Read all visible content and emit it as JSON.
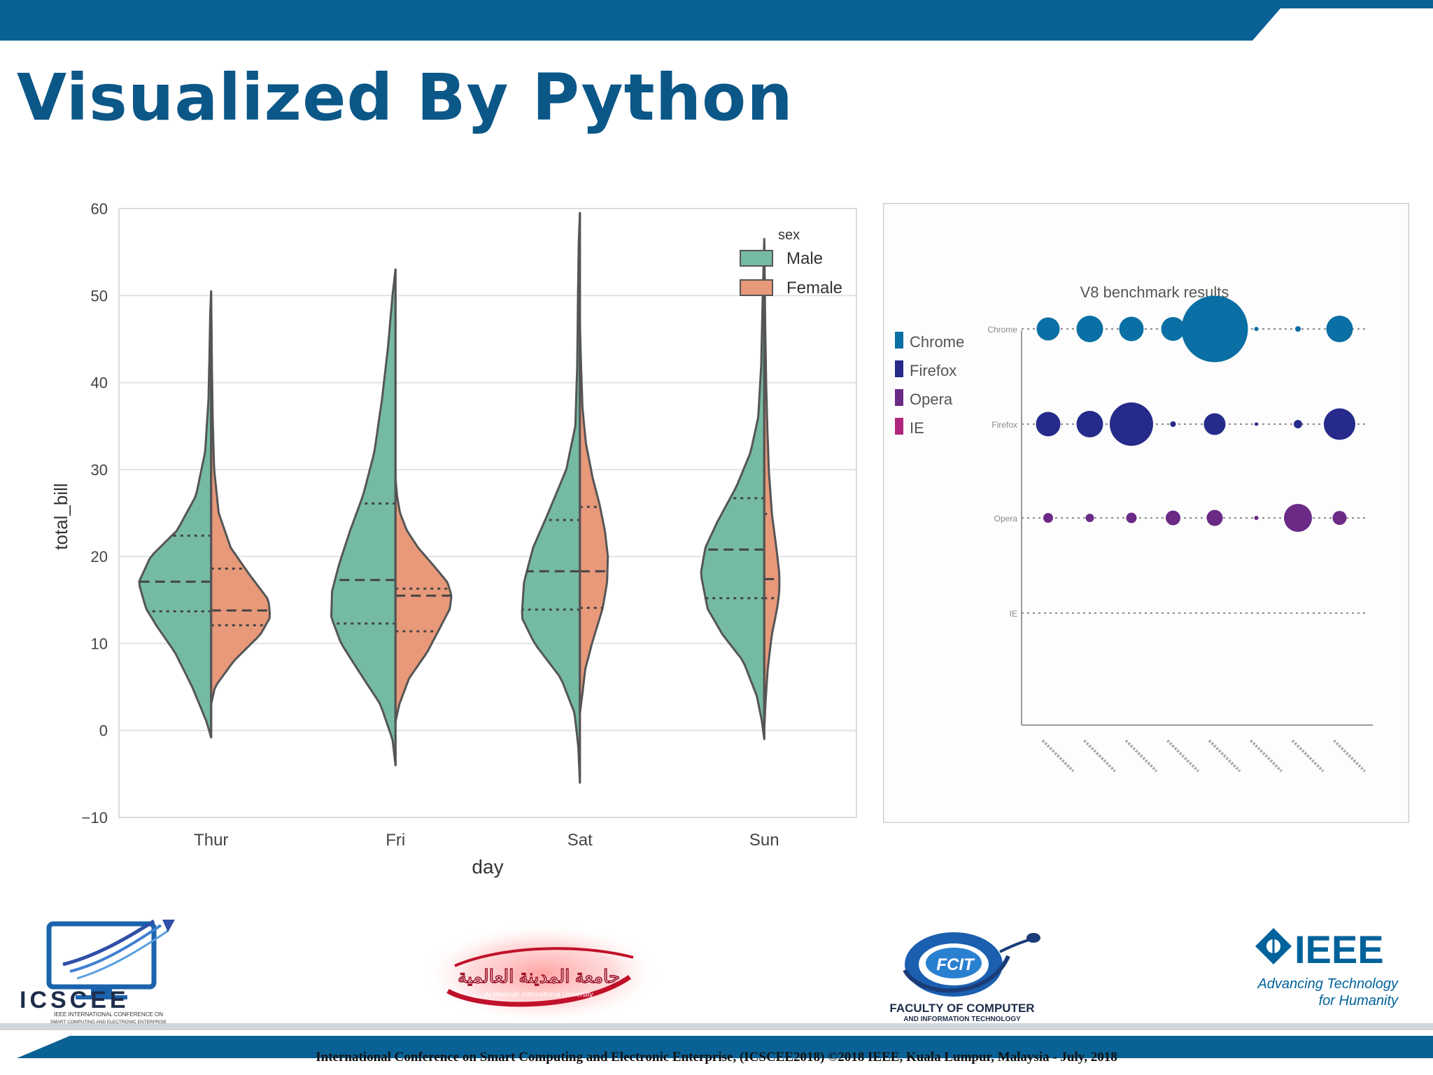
{
  "slide": {
    "title": "Visualized By Python",
    "footer": "International Conference on Smart Computing and Electronic Enterprise, (ICSCEE2018) ©2018 IEEE, Kuala Lumpur, Malaysia - July, 2018",
    "colors": {
      "primary": "#0b5788",
      "bar": "#0a6195"
    }
  },
  "logos": {
    "icscee": {
      "name": "ICSCEE",
      "subtitle_1": "IEEE INTERNATIONAL CONFERENCE ON",
      "subtitle_2": "SMART COMPUTING AND ELECTRONIC ENTERPRISE"
    },
    "university": {
      "arabic": "جامعة المدينة العالمية",
      "english": "Al-Madinah International University"
    },
    "fcit": {
      "mark": "FCIT",
      "line_1": "FACULTY OF COMPUTER",
      "line_2": "AND INFORMATION TECHNOLOGY"
    },
    "ieee": {
      "name": "IEEE",
      "tagline_1": "Advancing Technology",
      "tagline_2": "for Humanity"
    }
  },
  "chart_data": [
    {
      "type": "violin",
      "xlabel": "day",
      "ylabel": "total_bill",
      "ylim": [
        -10,
        60
      ],
      "yticks": [
        60,
        50,
        40,
        30,
        20,
        10,
        0,
        -10
      ],
      "ytick_labels": [
        "60",
        "50",
        "40",
        "30",
        "20",
        "10",
        "0",
        "−10"
      ],
      "categories": [
        "Thur",
        "Fri",
        "Sat",
        "Sun"
      ],
      "grid": true,
      "legend": {
        "title": "sex",
        "placement": "top-right"
      },
      "series": [
        {
          "name": "Male",
          "color": "#75bba2",
          "ranges": [
            [
              -0.8,
              50.5
            ],
            [
              -4,
              53
            ],
            [
              -6,
              59.5
            ],
            [
              -1,
              56
            ]
          ],
          "quartiles": [
            [
              13.7,
              17.1,
              22.4
            ],
            [
              12.3,
              17.3,
              26.1
            ],
            [
              13.9,
              18.3,
              24.2
            ],
            [
              15.2,
              20.8,
              26.7
            ]
          ],
          "profiles": [
            [
              [
                -0.8,
                0
              ],
              [
                1,
                0.06
              ],
              [
                5,
                0.25
              ],
              [
                9,
                0.48
              ],
              [
                12,
                0.72
              ],
              [
                14,
                0.86
              ],
              [
                17,
                0.96
              ],
              [
                20,
                0.8
              ],
              [
                23,
                0.45
              ],
              [
                27,
                0.2
              ],
              [
                32,
                0.08
              ],
              [
                38,
                0.035
              ],
              [
                44,
                0.02
              ],
              [
                48,
                0.012
              ],
              [
                50.5,
                0
              ]
            ],
            [
              [
                -4,
                0
              ],
              [
                -1,
                0.04
              ],
              [
                3,
                0.2
              ],
              [
                7,
                0.5
              ],
              [
                10,
                0.72
              ],
              [
                13,
                0.85
              ],
              [
                16,
                0.84
              ],
              [
                19,
                0.75
              ],
              [
                23,
                0.6
              ],
              [
                27,
                0.43
              ],
              [
                32,
                0.28
              ],
              [
                38,
                0.18
              ],
              [
                44,
                0.1
              ],
              [
                50,
                0.04
              ],
              [
                53,
                0
              ]
            ],
            [
              [
                -6,
                0
              ],
              [
                -2,
                0.02
              ],
              [
                2,
                0.07
              ],
              [
                6,
                0.25
              ],
              [
                10,
                0.6
              ],
              [
                13,
                0.77
              ],
              [
                17,
                0.74
              ],
              [
                21,
                0.62
              ],
              [
                25,
                0.42
              ],
              [
                30,
                0.18
              ],
              [
                35,
                0.06
              ],
              [
                42,
                0.035
              ],
              [
                50,
                0.025
              ],
              [
                56,
                0.015
              ],
              [
                59.5,
                0
              ]
            ],
            [
              [
                -1,
                0
              ],
              [
                1,
                0.03
              ],
              [
                4,
                0.1
              ],
              [
                8,
                0.28
              ],
              [
                11,
                0.55
              ],
              [
                14,
                0.75
              ],
              [
                18,
                0.84
              ],
              [
                21,
                0.78
              ],
              [
                24,
                0.62
              ],
              [
                28,
                0.37
              ],
              [
                32,
                0.18
              ],
              [
                36,
                0.08
              ],
              [
                42,
                0.04
              ],
              [
                50,
                0.02
              ],
              [
                56,
                0
              ]
            ]
          ]
        },
        {
          "name": "Female",
          "color": "#e8997a",
          "ranges": [
            [
              3,
              49.5
            ],
            [
              1,
              29
            ],
            [
              2,
              47
            ],
            [
              0,
              56.5
            ]
          ],
          "quartiles": [
            [
              12.1,
              13.8,
              18.6
            ],
            [
              11.4,
              15.5,
              16.3
            ],
            [
              14.1,
              18.3,
              25.7
            ],
            [
              15.2,
              17.4,
              24.9
            ]
          ],
          "profiles": [
            [
              [
                3,
                0
              ],
              [
                5,
                0.05
              ],
              [
                8,
                0.3
              ],
              [
                11,
                0.65
              ],
              [
                13,
                0.78
              ],
              [
                15,
                0.76
              ],
              [
                18,
                0.5
              ],
              [
                21,
                0.26
              ],
              [
                25,
                0.1
              ],
              [
                30,
                0.04
              ],
              [
                36,
                0.02
              ],
              [
                42,
                0.01
              ],
              [
                46,
                0.006
              ],
              [
                49.5,
                0
              ]
            ],
            [
              [
                1,
                0
              ],
              [
                3,
                0.05
              ],
              [
                6,
                0.18
              ],
              [
                9,
                0.42
              ],
              [
                12,
                0.6
              ],
              [
                14,
                0.72
              ],
              [
                15.5,
                0.74
              ],
              [
                17,
                0.69
              ],
              [
                19,
                0.5
              ],
              [
                21,
                0.3
              ],
              [
                23,
                0.15
              ],
              [
                25,
                0.06
              ],
              [
                27,
                0.02
              ],
              [
                29,
                0
              ]
            ],
            [
              [
                2,
                0
              ],
              [
                4,
                0.03
              ],
              [
                7,
                0.07
              ],
              [
                10,
                0.16
              ],
              [
                14,
                0.3
              ],
              [
                17,
                0.36
              ],
              [
                20,
                0.37
              ],
              [
                23,
                0.33
              ],
              [
                26,
                0.26
              ],
              [
                29,
                0.17
              ],
              [
                33,
                0.08
              ],
              [
                37,
                0.035
              ],
              [
                42,
                0.015
              ],
              [
                47,
                0
              ]
            ],
            [
              [
                0,
                0
              ],
              [
                3,
                0.015
              ],
              [
                7,
                0.045
              ],
              [
                11,
                0.1
              ],
              [
                14,
                0.17
              ],
              [
                16,
                0.2
              ],
              [
                18,
                0.2
              ],
              [
                21,
                0.16
              ],
              [
                25,
                0.1
              ],
              [
                30,
                0.06
              ],
              [
                35,
                0.04
              ],
              [
                40,
                0.025
              ],
              [
                47,
                0.012
              ],
              [
                52,
                0.006
              ],
              [
                56.5,
                0
              ]
            ]
          ]
        }
      ]
    },
    {
      "type": "scatter",
      "title": "V8 benchmark results",
      "rows": [
        "Chrome",
        "Firefox",
        "Opera",
        "IE"
      ],
      "legend": {
        "entries": [
          "Chrome",
          "Firefox",
          "Opera",
          "IE"
        ],
        "placement": "left"
      },
      "colors": [
        "#0a6fa4",
        "#262a8a",
        "#6b2a86",
        "#b0267e"
      ],
      "x_count": 8,
      "sizes": [
        [
          33,
          38,
          35,
          34,
          95,
          6,
          8,
          38
        ],
        [
          35,
          38,
          62,
          8,
          31,
          5,
          12,
          45
        ],
        [
          14,
          12,
          15,
          21,
          23,
          6,
          40,
          20
        ],
        []
      ]
    }
  ]
}
